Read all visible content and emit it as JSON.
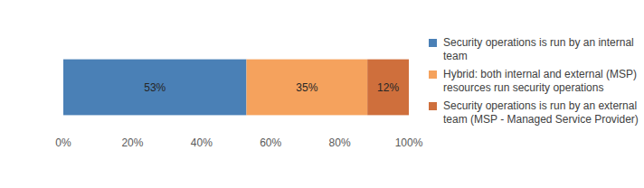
{
  "chart_data": {
    "type": "bar",
    "orientation": "horizontal",
    "stacked": true,
    "data_labels": true,
    "grid": false,
    "legend": "right",
    "categories": [
      null
    ],
    "series": [
      {
        "name": "Security operations is run by an internal team",
        "color": "#4a80b6",
        "values": [
          53
        ],
        "value_labels": [
          "53%"
        ]
      },
      {
        "name": "Hybrid: both internal and external (MSP) resources run security operations",
        "color": "#f5a25d",
        "values": [
          35
        ],
        "value_labels": [
          "35%"
        ]
      },
      {
        "name": "Security operations is run by an external team (MSP - Managed Service Provider)",
        "color": "#cf6f3c",
        "values": [
          12
        ],
        "value_labels": [
          "12%"
        ]
      }
    ],
    "xlim": [
      0,
      100
    ],
    "xticks": [
      {
        "value": 0,
        "label": "0%"
      },
      {
        "value": 20,
        "label": "20%"
      },
      {
        "value": 40,
        "label": "40%"
      },
      {
        "value": 60,
        "label": "60%"
      },
      {
        "value": 80,
        "label": "80%"
      },
      {
        "value": 100,
        "label": "100%"
      }
    ]
  }
}
